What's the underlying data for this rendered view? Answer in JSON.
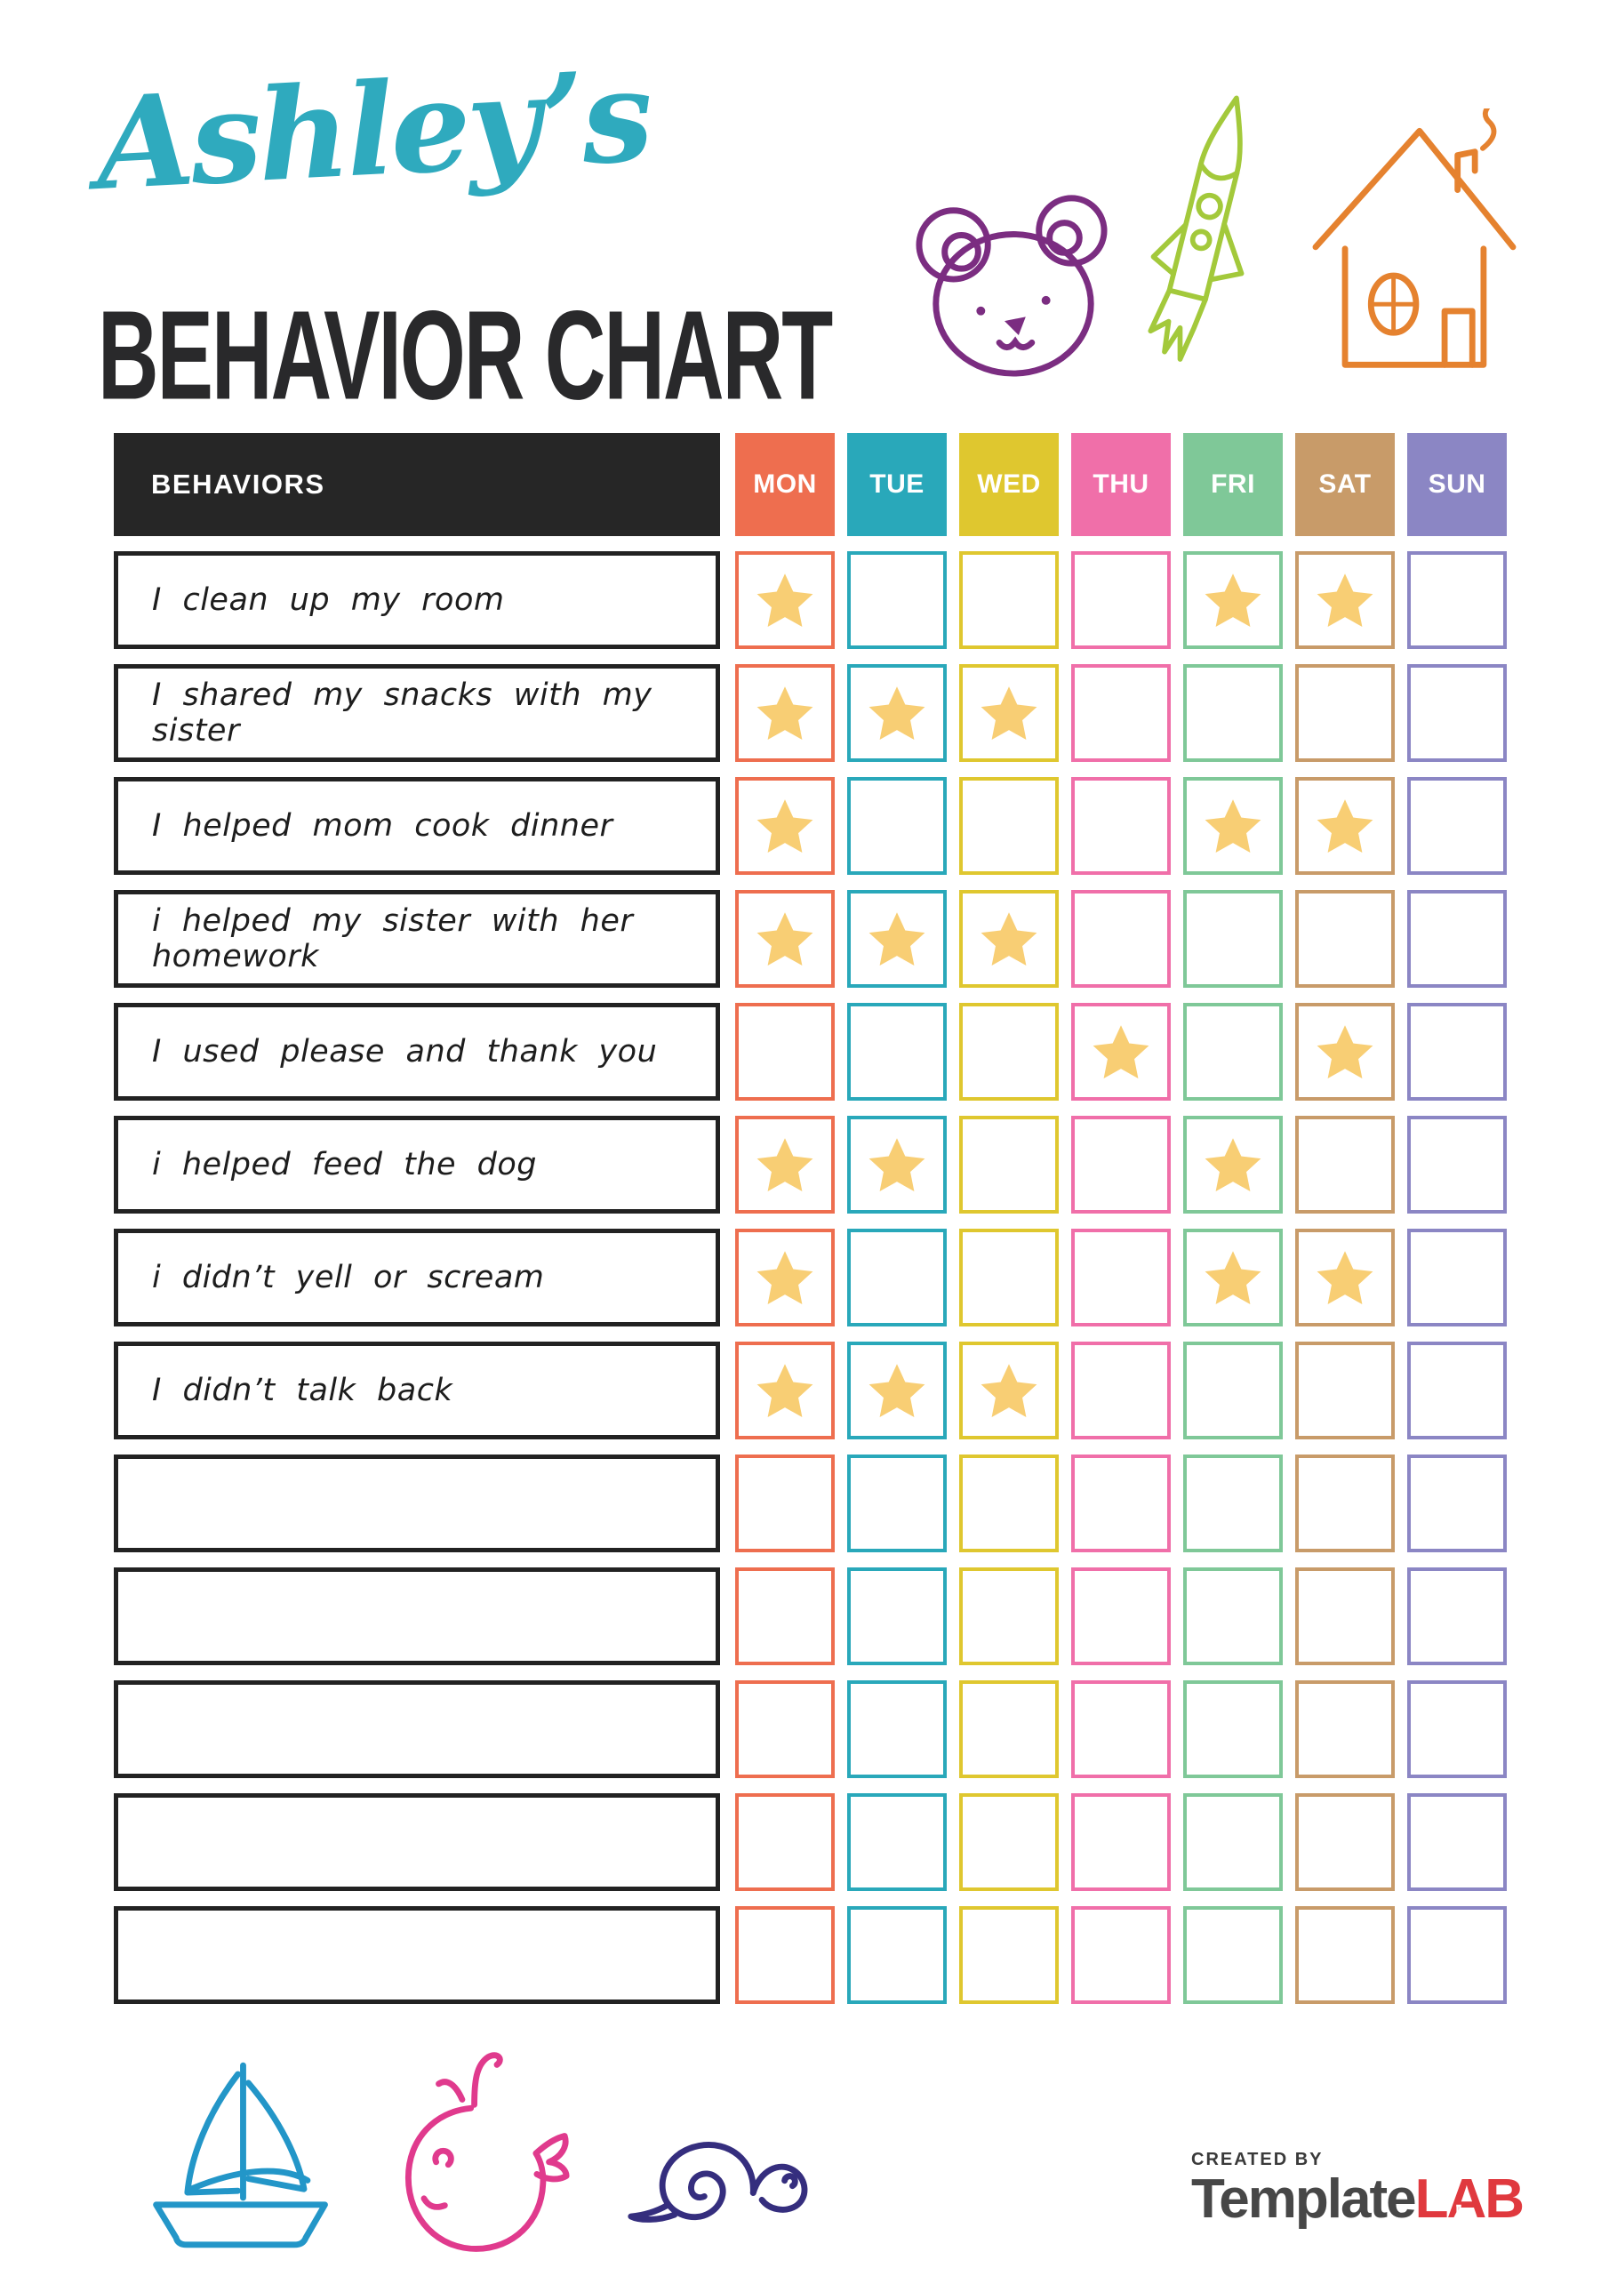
{
  "header": {
    "name": "Ashley’s",
    "title": "BEHAVIOR CHART",
    "name_color": "#2FAABE",
    "title_color": "#29292B"
  },
  "table": {
    "behaviors_header": "BEHAVIORS",
    "header_bg": "#262626",
    "star_color": "#F8CE74",
    "days": [
      {
        "label": "MON",
        "color": "#EE6E4F"
      },
      {
        "label": "TUE",
        "color": "#29A8BA"
      },
      {
        "label": "WED",
        "color": "#DFC72F"
      },
      {
        "label": "THU",
        "color": "#F06FA9"
      },
      {
        "label": "FRI",
        "color": "#7FC898"
      },
      {
        "label": "SAT",
        "color": "#C89B69"
      },
      {
        "label": "SUN",
        "color": "#8B86C4"
      }
    ],
    "rows": [
      {
        "behavior": "I clean up my room",
        "stars": [
          1,
          0,
          0,
          0,
          1,
          1,
          0
        ]
      },
      {
        "behavior": "I shared my snacks with my sister",
        "stars": [
          1,
          1,
          1,
          0,
          0,
          0,
          0
        ]
      },
      {
        "behavior": "I helped mom cook dinner",
        "stars": [
          1,
          0,
          0,
          0,
          1,
          1,
          0
        ]
      },
      {
        "behavior": "i helped my sister with her homework",
        "stars": [
          1,
          1,
          1,
          0,
          0,
          0,
          0
        ]
      },
      {
        "behavior": "I used please and thank you",
        "stars": [
          0,
          0,
          0,
          1,
          0,
          1,
          0
        ]
      },
      {
        "behavior": "i helped feed the dog",
        "stars": [
          1,
          1,
          0,
          0,
          1,
          0,
          0
        ]
      },
      {
        "behavior": "i didn’t yell or scream",
        "stars": [
          1,
          0,
          0,
          0,
          1,
          1,
          0
        ]
      },
      {
        "behavior": "I didn’t talk back",
        "stars": [
          1,
          1,
          1,
          0,
          0,
          0,
          0
        ]
      },
      {
        "behavior": "",
        "stars": [
          0,
          0,
          0,
          0,
          0,
          0,
          0
        ]
      },
      {
        "behavior": "",
        "stars": [
          0,
          0,
          0,
          0,
          0,
          0,
          0
        ]
      },
      {
        "behavior": "",
        "stars": [
          0,
          0,
          0,
          0,
          0,
          0,
          0
        ]
      },
      {
        "behavior": "",
        "stars": [
          0,
          0,
          0,
          0,
          0,
          0,
          0
        ]
      },
      {
        "behavior": "",
        "stars": [
          0,
          0,
          0,
          0,
          0,
          0,
          0
        ]
      }
    ]
  },
  "doodle_colors": {
    "bear": "#7B2D81",
    "rocket": "#A3C93B",
    "house": "#E5822F",
    "sailboat": "#2396C8",
    "whale": "#E03A8D",
    "snail": "#352E7E"
  },
  "footer": {
    "created_by": "CREATED BY",
    "brand_gray": "Template",
    "brand_red": "LAB",
    "brand_gray_color": "#474747",
    "brand_red_color": "#E0393E"
  }
}
